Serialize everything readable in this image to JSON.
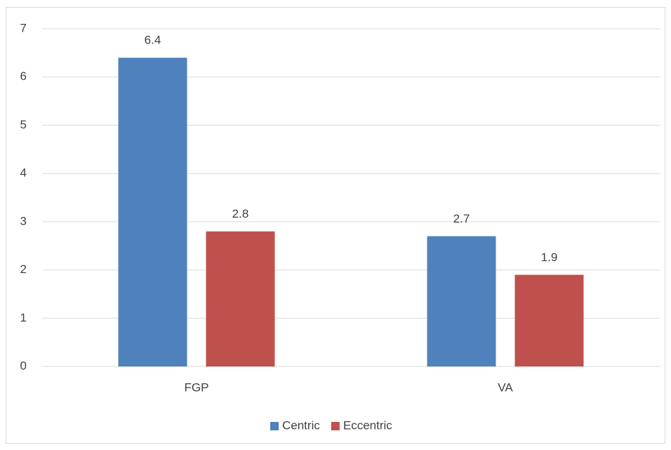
{
  "chart_data": {
    "type": "bar",
    "categories": [
      "FGP",
      "VA"
    ],
    "series": [
      {
        "name": "Centric",
        "color": "#4f81bd",
        "values": [
          6.4,
          2.7
        ]
      },
      {
        "name": "Eccentric",
        "color": "#c0504d",
        "values": [
          2.8,
          1.9
        ]
      }
    ],
    "ylim": [
      0,
      7
    ],
    "yticks": [
      0,
      1,
      2,
      3,
      4,
      5,
      6,
      7
    ],
    "grid": true,
    "legend": "bottom"
  }
}
